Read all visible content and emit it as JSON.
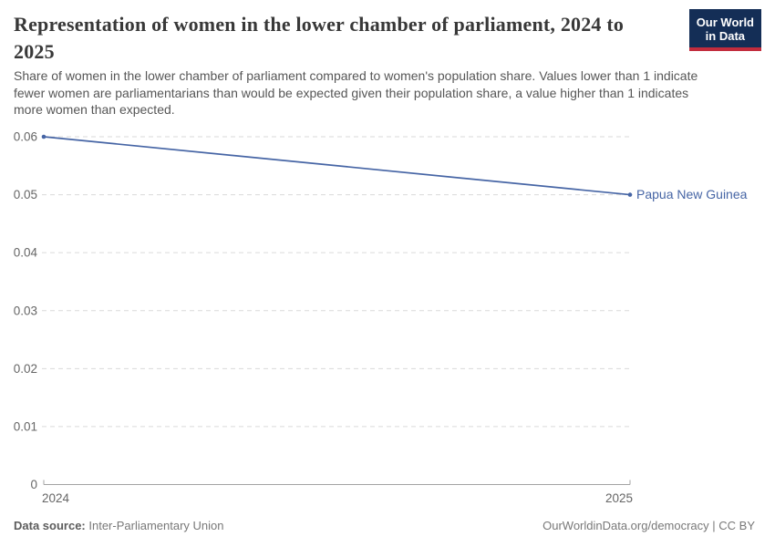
{
  "branding": {
    "logo_line1": "Our World",
    "logo_line2": "in Data",
    "logo_bg": "#142e56",
    "logo_accent": "#c22c3d"
  },
  "chart_data": {
    "type": "line",
    "title": "Representation of women in the lower chamber of parliament, 2024 to 2025",
    "subtitle": "Share of women in the lower chamber of parliament compared to women's population share. Values lower than 1 indicate fewer women are parliamentarians than would be expected given their population share, a value higher than 1 indicates more women than expected.",
    "x": [
      2024,
      2025
    ],
    "series": [
      {
        "name": "Papua New Guinea",
        "values": [
          0.06,
          0.05
        ],
        "color": "#4665a5"
      }
    ],
    "xticks": [
      2024,
      2025
    ],
    "yticks": [
      0,
      0.01,
      0.02,
      0.03,
      0.04,
      0.05,
      0.06
    ],
    "ylim": [
      0,
      0.06
    ],
    "xlabel": "",
    "ylabel": "",
    "grid": "horizontal-dashed",
    "legend_position": "line-end-label",
    "colors": {
      "grid": "#dadada",
      "axis": "#a3a3a3",
      "tick_text": "#666666"
    }
  },
  "footer": {
    "source_label": "Data source:",
    "source_value": "Inter-Parliamentary Union",
    "attribution": "OurWorldinData.org/democracy | CC BY"
  }
}
